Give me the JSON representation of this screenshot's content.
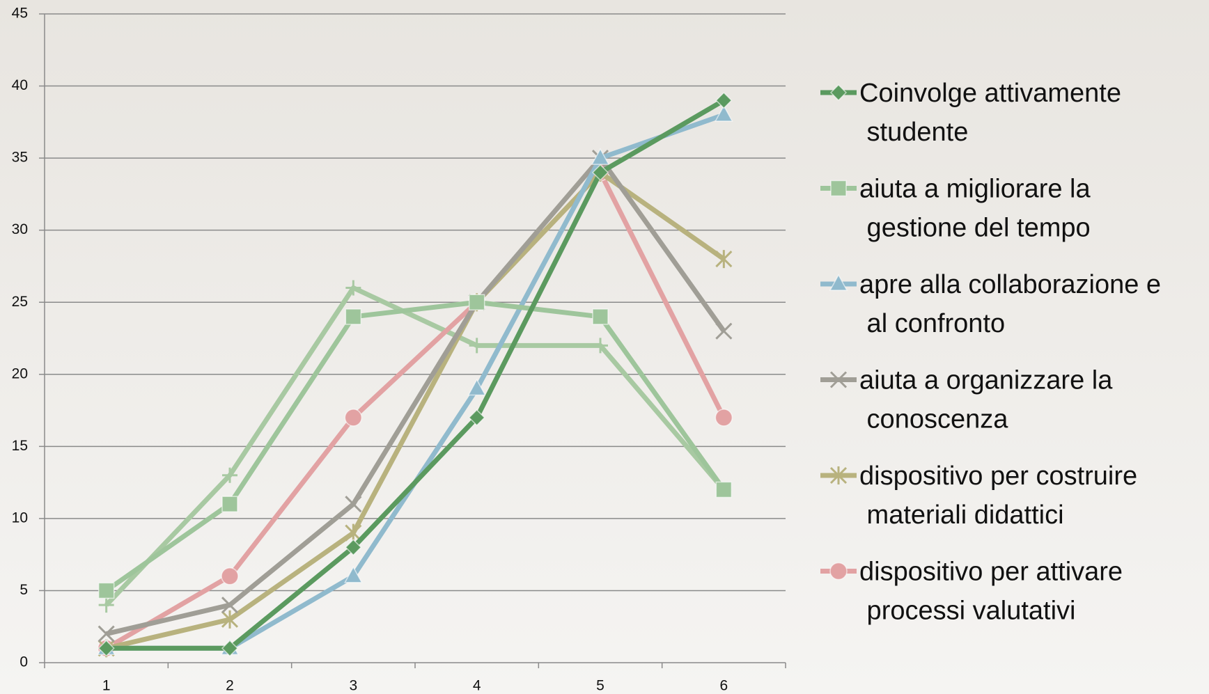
{
  "chart_data": {
    "type": "line",
    "categories": [
      "1",
      "2",
      "3",
      "4",
      "5",
      "6"
    ],
    "ylim": [
      0,
      45
    ],
    "yticks": [
      0,
      5,
      10,
      15,
      20,
      25,
      30,
      35,
      40,
      45
    ],
    "grid": true,
    "legend": "right",
    "series": [
      {
        "name": "Coinvolge attivamente studente",
        "color": "#5b9a5f",
        "marker": "diamond",
        "values": [
          1,
          1,
          8,
          17,
          34,
          39
        ]
      },
      {
        "name": "aiuta a migliorare la gestione del tempo",
        "color": "#9ec59b",
        "marker": "square",
        "values": [
          5,
          11,
          24,
          25,
          24,
          12
        ]
      },
      {
        "name": "apre alla collaborazione e al confronto",
        "color": "#90bacd",
        "marker": "triangle",
        "values": [
          1,
          1,
          6,
          19,
          35,
          38
        ]
      },
      {
        "name": "aiuta a organizzare la conoscenza",
        "color": "#a09e96",
        "marker": "x",
        "values": [
          2,
          4,
          11,
          25,
          35,
          23
        ]
      },
      {
        "name": "dispositivo per costruire materiali didattici",
        "color": "#b8b27e",
        "marker": "star",
        "values": [
          1,
          3,
          9,
          25,
          34,
          28
        ]
      },
      {
        "name": "dispositivo per attivare processi valutativi",
        "color": "#e2a2a3",
        "marker": "circle",
        "values": [
          1,
          6,
          17,
          25,
          34,
          17
        ]
      },
      {
        "color": "#a8c9a2",
        "marker": "plus",
        "values": [
          4,
          13,
          26,
          22,
          22,
          12
        ]
      }
    ]
  }
}
